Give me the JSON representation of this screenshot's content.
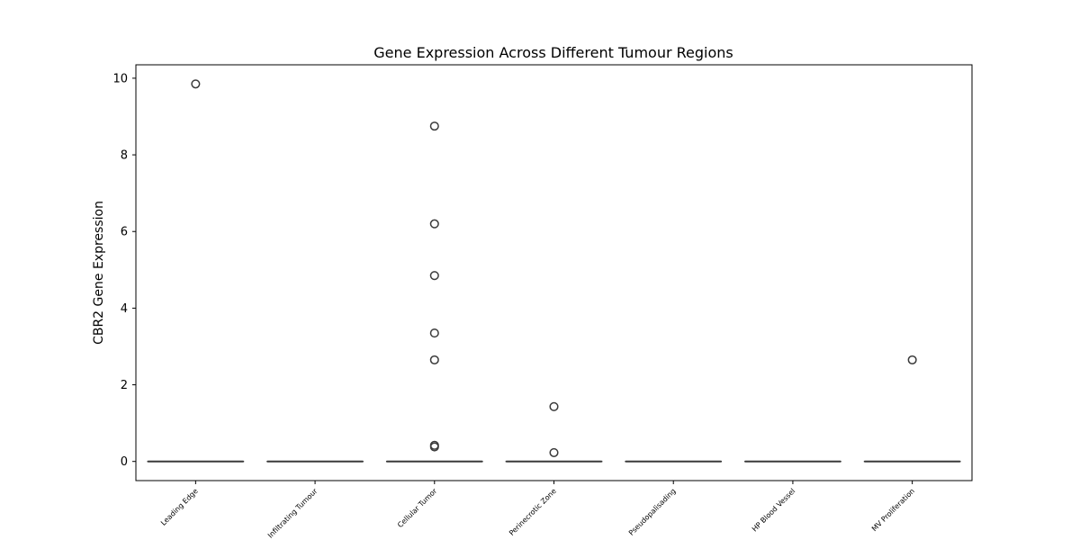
{
  "chart_data": {
    "type": "box",
    "title": "Gene Expression Across Different Tumour Regions",
    "xlabel": "",
    "ylabel": "CBR2 Gene Expression",
    "ylim": [
      -0.5,
      10.35
    ],
    "yticks": [
      0,
      2,
      4,
      6,
      8,
      10
    ],
    "grid": false,
    "categories": [
      "Leading Edge",
      "Infiltrating Tumour",
      "Cellular Tumor",
      "Perinecrotic Zone",
      "Pseudopalisading",
      "HP Blood Vessel",
      "MV Proliferation"
    ],
    "series": [
      {
        "category": "Leading Edge",
        "whisker_low": 0,
        "q1": 0,
        "median": 0,
        "q3": 0,
        "whisker_high": 0,
        "outliers": [
          9.85
        ]
      },
      {
        "category": "Infiltrating Tumour",
        "whisker_low": 0,
        "q1": 0,
        "median": 0,
        "q3": 0,
        "whisker_high": 0,
        "outliers": []
      },
      {
        "category": "Cellular Tumor",
        "whisker_low": 0,
        "q1": 0,
        "median": 0,
        "q3": 0,
        "whisker_high": 0,
        "outliers": [
          8.75,
          6.2,
          4.85,
          3.35,
          2.65,
          0.42,
          0.38
        ]
      },
      {
        "category": "Perinecrotic Zone",
        "whisker_low": 0,
        "q1": 0,
        "median": 0,
        "q3": 0,
        "whisker_high": 0,
        "outliers": [
          1.43,
          0.23
        ]
      },
      {
        "category": "Pseudopalisading",
        "whisker_low": 0,
        "q1": 0,
        "median": 0,
        "q3": 0,
        "whisker_high": 0,
        "outliers": []
      },
      {
        "category": "HP Blood Vessel",
        "whisker_low": 0,
        "q1": 0,
        "median": 0,
        "q3": 0,
        "whisker_high": 0,
        "outliers": []
      },
      {
        "category": "MV Proliferation",
        "whisker_low": 0,
        "q1": 0,
        "median": 0,
        "q3": 0,
        "whisker_high": 0,
        "outliers": [
          2.65
        ]
      }
    ],
    "colors": {
      "box": "#3b3b3b",
      "outlier_edge": "#3b3b3b",
      "axis": "#000000"
    }
  }
}
